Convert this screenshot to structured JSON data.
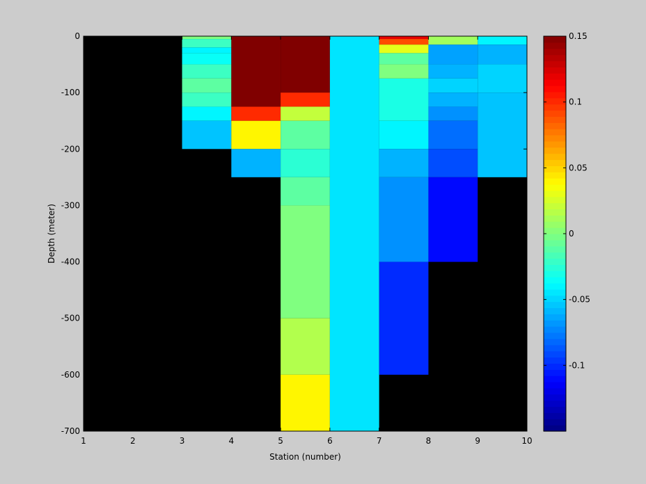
{
  "chart_data": {
    "type": "heatmap",
    "title": "",
    "xlabel": "Station (number)",
    "ylabel": "Depth (meter)",
    "xlim": [
      1,
      10
    ],
    "ylim": [
      -700,
      0
    ],
    "x_ticks": [
      1,
      2,
      3,
      4,
      5,
      6,
      7,
      8,
      9,
      10
    ],
    "y_ticks": [
      0,
      -100,
      -200,
      -300,
      -400,
      -500,
      -600,
      -700
    ],
    "colorbar": {
      "colormap": "jet",
      "clim": [
        -0.15,
        0.15
      ],
      "ticks": [
        0.15,
        0.1,
        0.05,
        0,
        -0.05,
        -0.1
      ],
      "tick_labels": [
        "0.15",
        "0.1",
        "0.05",
        "0",
        "-0.05",
        "-0.1"
      ]
    },
    "nodata_color": "#000000",
    "background_color": "#cccccc",
    "cells": [
      {
        "station": [
          3,
          4
        ],
        "depth": [
          0,
          -5
        ],
        "value": 0.0
      },
      {
        "station": [
          3,
          4
        ],
        "depth": [
          -5,
          -20
        ],
        "value": -0.02
      },
      {
        "station": [
          3,
          4
        ],
        "depth": [
          -20,
          -30
        ],
        "value": -0.04
      },
      {
        "station": [
          3,
          4
        ],
        "depth": [
          -30,
          -50
        ],
        "value": -0.035
      },
      {
        "station": [
          3,
          4
        ],
        "depth": [
          -50,
          -75
        ],
        "value": -0.02
      },
      {
        "station": [
          3,
          4
        ],
        "depth": [
          -75,
          -100
        ],
        "value": -0.01
      },
      {
        "station": [
          3,
          4
        ],
        "depth": [
          -100,
          -125
        ],
        "value": -0.02
      },
      {
        "station": [
          3,
          4
        ],
        "depth": [
          -125,
          -150
        ],
        "value": -0.04
      },
      {
        "station": [
          3,
          4
        ],
        "depth": [
          -150,
          -200
        ],
        "value": -0.055
      },
      {
        "station": [
          4,
          5
        ],
        "depth": [
          0,
          -125
        ],
        "value": 0.15
      },
      {
        "station": [
          4,
          5
        ],
        "depth": [
          -125,
          -150
        ],
        "value": 0.1
      },
      {
        "station": [
          4,
          5
        ],
        "depth": [
          -150,
          -200
        ],
        "value": 0.04
      },
      {
        "station": [
          4,
          5
        ],
        "depth": [
          -200,
          -250
        ],
        "value": -0.06
      },
      {
        "station": [
          5,
          6
        ],
        "depth": [
          0,
          -100
        ],
        "value": 0.15
      },
      {
        "station": [
          5,
          6
        ],
        "depth": [
          -100,
          -125
        ],
        "value": 0.1
      },
      {
        "station": [
          5,
          6
        ],
        "depth": [
          -125,
          -150
        ],
        "value": 0.02
      },
      {
        "station": [
          5,
          6
        ],
        "depth": [
          -150,
          -200
        ],
        "value": -0.01
      },
      {
        "station": [
          5,
          6
        ],
        "depth": [
          -200,
          -250
        ],
        "value": -0.025
      },
      {
        "station": [
          5,
          6
        ],
        "depth": [
          -250,
          -300
        ],
        "value": -0.01
      },
      {
        "station": [
          5,
          6
        ],
        "depth": [
          -300,
          -500
        ],
        "value": 0.0
      },
      {
        "station": [
          5,
          6
        ],
        "depth": [
          -500,
          -600
        ],
        "value": 0.015
      },
      {
        "station": [
          5,
          6
        ],
        "depth": [
          -600,
          -700
        ],
        "value": 0.04
      },
      {
        "station": [
          6,
          7
        ],
        "depth": [
          0,
          -700
        ],
        "value": -0.045
      },
      {
        "station": [
          7,
          8
        ],
        "depth": [
          0,
          -5
        ],
        "value": 0.12
      },
      {
        "station": [
          7,
          8
        ],
        "depth": [
          -5,
          -15
        ],
        "value": 0.09
      },
      {
        "station": [
          7,
          8
        ],
        "depth": [
          -15,
          -30
        ],
        "value": 0.03
      },
      {
        "station": [
          7,
          8
        ],
        "depth": [
          -30,
          -50
        ],
        "value": -0.01
      },
      {
        "station": [
          7,
          8
        ],
        "depth": [
          -50,
          -75
        ],
        "value": 0.0
      },
      {
        "station": [
          7,
          8
        ],
        "depth": [
          -75,
          -150
        ],
        "value": -0.03
      },
      {
        "station": [
          7,
          8
        ],
        "depth": [
          -150,
          -200
        ],
        "value": -0.04
      },
      {
        "station": [
          7,
          8
        ],
        "depth": [
          -200,
          -250
        ],
        "value": -0.06
      },
      {
        "station": [
          7,
          8
        ],
        "depth": [
          -250,
          -400
        ],
        "value": -0.07
      },
      {
        "station": [
          7,
          8
        ],
        "depth": [
          -400,
          -600
        ],
        "value": -0.1
      },
      {
        "station": [
          8,
          9
        ],
        "depth": [
          0,
          -15
        ],
        "value": 0.01
      },
      {
        "station": [
          8,
          9
        ],
        "depth": [
          -15,
          -50
        ],
        "value": -0.065
      },
      {
        "station": [
          8,
          9
        ],
        "depth": [
          -50,
          -75
        ],
        "value": -0.06
      },
      {
        "station": [
          8,
          9
        ],
        "depth": [
          -75,
          -100
        ],
        "value": -0.05
      },
      {
        "station": [
          8,
          9
        ],
        "depth": [
          -100,
          -125
        ],
        "value": -0.06
      },
      {
        "station": [
          8,
          9
        ],
        "depth": [
          -125,
          -150
        ],
        "value": -0.07
      },
      {
        "station": [
          8,
          9
        ],
        "depth": [
          -150,
          -200
        ],
        "value": -0.08
      },
      {
        "station": [
          8,
          9
        ],
        "depth": [
          -200,
          -250
        ],
        "value": -0.09
      },
      {
        "station": [
          8,
          9
        ],
        "depth": [
          -250,
          -400
        ],
        "value": -0.11
      },
      {
        "station": [
          9,
          10
        ],
        "depth": [
          0,
          -15
        ],
        "value": -0.04
      },
      {
        "station": [
          9,
          10
        ],
        "depth": [
          -15,
          -50
        ],
        "value": -0.06
      },
      {
        "station": [
          9,
          10
        ],
        "depth": [
          -50,
          -100
        ],
        "value": -0.05
      },
      {
        "station": [
          9,
          10
        ],
        "depth": [
          -100,
          -250
        ],
        "value": -0.055
      }
    ]
  }
}
